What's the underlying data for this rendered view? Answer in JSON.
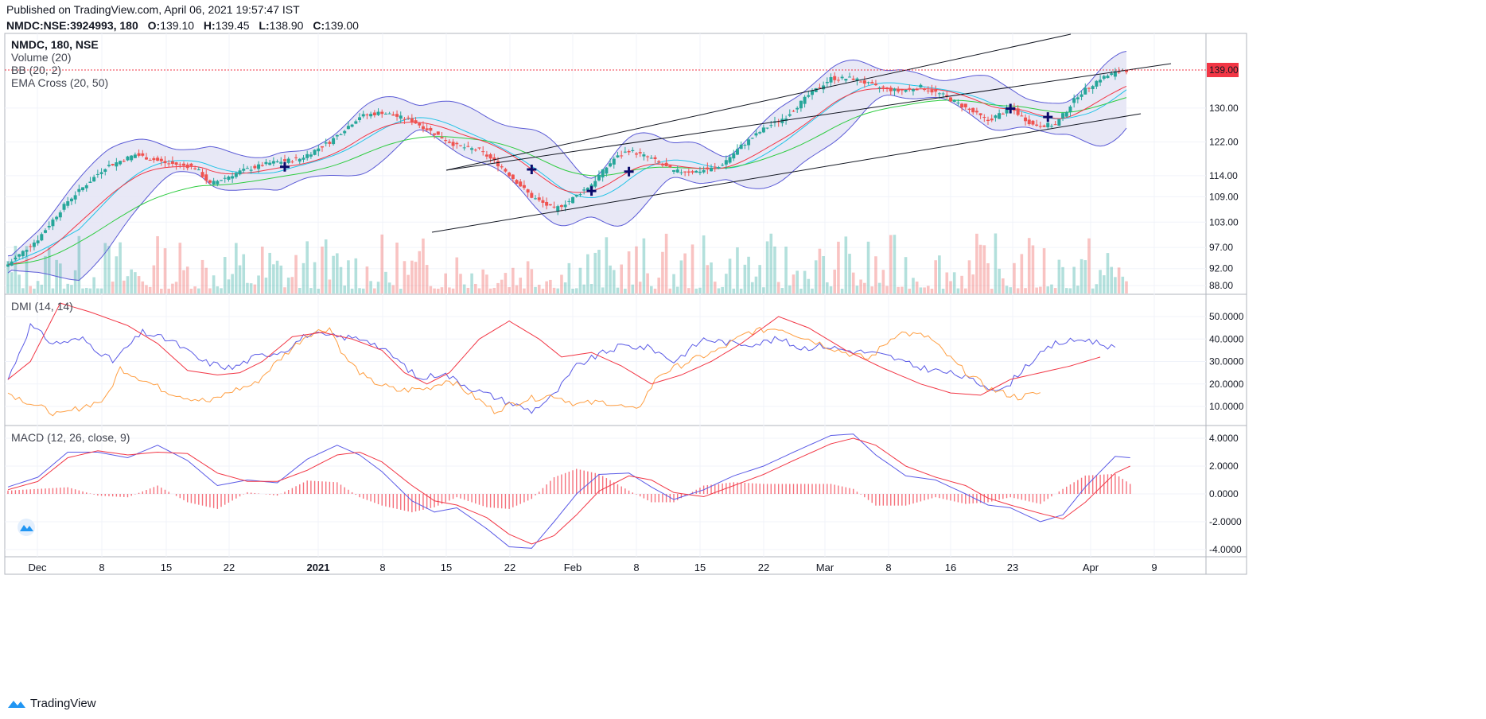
{
  "header": {
    "published": "Published on TradingView.com, April 06, 2021 19:57:47 IST",
    "symbol_line": "NMDC:NSE:3924993, 180",
    "o_label": "O:",
    "o_value": "139.10",
    "h_label": "H:",
    "h_value": "139.45",
    "l_label": "L:",
    "l_value": "138.90",
    "c_label": "C:",
    "c_value": "139.00"
  },
  "brand": {
    "label": "TradingView",
    "icon": "tradingview-logo-icon"
  },
  "colors": {
    "bull": "#26a69a",
    "bear": "#ef5350",
    "bb_band": "#5b5bd6",
    "bb_fill": "#e4e4f5",
    "ema_fast": "#f23645",
    "ema_slow": "#2ecc40",
    "bb_basis": "#22c3e6",
    "dmi_plus": "#5a5ae6",
    "dmi_minus": "#ff9f43",
    "adx": "#f23645",
    "macd": "#5a5ae6",
    "signal": "#f23645",
    "hist": "#f23645",
    "price_line": "#f23645",
    "cross_marker": "#0b0b6b"
  },
  "chart_data": [
    {
      "type": "candlestick",
      "title": "NMDC, 180, NSE",
      "legend": [
        "NMDC, 180, NSE",
        "Volume (20)",
        "BB (20, 2)",
        "EMA Cross (20, 50)"
      ],
      "x_ticks": [
        "Dec",
        "8",
        "15",
        "22",
        "2021",
        "8",
        "15",
        "22",
        "Feb",
        "8",
        "15",
        "22",
        "Mar",
        "8",
        "16",
        "23",
        "Apr",
        "9"
      ],
      "y_ticks": [
        "139.00",
        "130.00",
        "122.00",
        "114.00",
        "109.00",
        "103.00",
        "97.00",
        "92.00",
        "88.00"
      ],
      "last_price": "139.00",
      "close_series_anchors": [
        [
          0,
          93
        ],
        [
          8,
          99
        ],
        [
          16,
          108
        ],
        [
          26,
          116
        ],
        [
          34,
          119
        ],
        [
          42,
          117
        ],
        [
          50,
          116
        ],
        [
          54,
          112
        ],
        [
          62,
          115
        ],
        [
          70,
          117
        ],
        [
          78,
          118
        ],
        [
          86,
          122
        ],
        [
          94,
          128
        ],
        [
          100,
          129
        ],
        [
          108,
          127
        ],
        [
          114,
          124
        ],
        [
          120,
          121
        ],
        [
          126,
          120
        ],
        [
          132,
          116
        ],
        [
          140,
          109
        ],
        [
          146,
          106
        ],
        [
          150,
          108
        ],
        [
          156,
          112
        ],
        [
          162,
          118
        ],
        [
          166,
          120
        ],
        [
          172,
          118
        ],
        [
          178,
          115
        ],
        [
          184,
          115
        ],
        [
          190,
          116
        ],
        [
          196,
          121
        ],
        [
          202,
          125
        ],
        [
          208,
          128
        ],
        [
          214,
          133
        ],
        [
          220,
          137
        ],
        [
          226,
          137
        ],
        [
          232,
          135
        ],
        [
          238,
          134
        ],
        [
          244,
          135
        ],
        [
          250,
          133
        ],
        [
          256,
          130
        ],
        [
          262,
          127
        ],
        [
          268,
          130
        ],
        [
          274,
          126
        ],
        [
          280,
          126
        ],
        [
          286,
          133
        ],
        [
          292,
          137
        ],
        [
          298,
          139
        ]
      ],
      "ema_cross_markers": [
        74,
        140,
        156,
        166,
        268,
        278
      ]
    },
    {
      "type": "line",
      "title": "DMI (14, 14)",
      "y_ticks": [
        "50.0000",
        "40.0000",
        "30.0000",
        "20.0000",
        "10.0000"
      ],
      "series": [
        {
          "name": "+DI",
          "anchors": [
            [
              0,
              22
            ],
            [
              6,
              46
            ],
            [
              12,
              38
            ],
            [
              20,
              40
            ],
            [
              28,
              30
            ],
            [
              36,
              43
            ],
            [
              44,
              39
            ],
            [
              52,
              30
            ],
            [
              60,
              27
            ],
            [
              66,
              32
            ],
            [
              74,
              35
            ],
            [
              80,
              42
            ],
            [
              88,
              41
            ],
            [
              96,
              40
            ],
            [
              104,
              31
            ],
            [
              110,
              22
            ],
            [
              116,
              25
            ],
            [
              124,
              18
            ],
            [
              132,
              13
            ],
            [
              140,
              8
            ],
            [
              146,
              15
            ],
            [
              152,
              28
            ],
            [
              158,
              33
            ],
            [
              164,
              37
            ],
            [
              172,
              36
            ],
            [
              178,
              30
            ],
            [
              186,
              40
            ],
            [
              194,
              38
            ],
            [
              200,
              38
            ],
            [
              206,
              40
            ],
            [
              212,
              36
            ],
            [
              218,
              37
            ],
            [
              224,
              35
            ],
            [
              230,
              34
            ],
            [
              236,
              32
            ],
            [
              242,
              28
            ],
            [
              248,
              26
            ],
            [
              254,
              24
            ],
            [
              260,
              20
            ],
            [
              266,
              17
            ],
            [
              272,
              28
            ],
            [
              280,
              38
            ],
            [
              288,
              40
            ],
            [
              296,
              36
            ]
          ]
        },
        {
          "name": "-DI",
          "anchors": [
            [
              0,
              16
            ],
            [
              8,
              10
            ],
            [
              14,
              6
            ],
            [
              20,
              10
            ],
            [
              26,
              13
            ],
            [
              30,
              27
            ],
            [
              36,
              22
            ],
            [
              42,
              17
            ],
            [
              48,
              14
            ],
            [
              54,
              12
            ],
            [
              60,
              17
            ],
            [
              66,
              20
            ],
            [
              72,
              30
            ],
            [
              80,
              42
            ],
            [
              86,
              45
            ],
            [
              90,
              32
            ],
            [
              96,
              22
            ],
            [
              104,
              17
            ],
            [
              112,
              18
            ],
            [
              118,
              22
            ],
            [
              124,
              15
            ],
            [
              130,
              8
            ],
            [
              138,
              13
            ],
            [
              146,
              15
            ],
            [
              152,
              11
            ],
            [
              160,
              12
            ],
            [
              168,
              8
            ],
            [
              174,
              24
            ],
            [
              182,
              30
            ],
            [
              190,
              35
            ],
            [
              198,
              43
            ],
            [
              206,
              45
            ],
            [
              214,
              40
            ],
            [
              222,
              35
            ],
            [
              230,
              31
            ],
            [
              238,
              43
            ],
            [
              246,
              41
            ],
            [
              254,
              28
            ],
            [
              262,
              18
            ],
            [
              270,
              14
            ],
            [
              276,
              16
            ]
          ]
        },
        {
          "name": "ADX",
          "anchors": [
            [
              0,
              22
            ],
            [
              6,
              30
            ],
            [
              14,
              56
            ],
            [
              22,
              52
            ],
            [
              32,
              46
            ],
            [
              40,
              38
            ],
            [
              48,
              26
            ],
            [
              56,
              24
            ],
            [
              62,
              25
            ],
            [
              68,
              30
            ],
            [
              76,
              41
            ],
            [
              84,
              43
            ],
            [
              92,
              40
            ],
            [
              100,
              35
            ],
            [
              106,
              25
            ],
            [
              112,
              20
            ],
            [
              118,
              25
            ],
            [
              126,
              40
            ],
            [
              134,
              48
            ],
            [
              142,
              40
            ],
            [
              148,
              32
            ],
            [
              156,
              34
            ],
            [
              164,
              28
            ],
            [
              172,
              20
            ],
            [
              180,
              24
            ],
            [
              188,
              30
            ],
            [
              196,
              38
            ],
            [
              206,
              50
            ],
            [
              214,
              45
            ],
            [
              224,
              35
            ],
            [
              234,
              27
            ],
            [
              244,
              20
            ],
            [
              252,
              16
            ],
            [
              260,
              15
            ],
            [
              268,
              22
            ],
            [
              276,
              25
            ],
            [
              284,
              28
            ],
            [
              292,
              32
            ]
          ]
        }
      ]
    },
    {
      "type": "line",
      "title": "MACD (12, 26, close, 9)",
      "y_ticks": [
        "4.0000",
        "2.0000",
        "0.0000",
        "-2.0000",
        "-4.0000"
      ],
      "series": [
        {
          "name": "MACD",
          "anchors": [
            [
              0,
              0.5
            ],
            [
              8,
              1.2
            ],
            [
              16,
              3.0
            ],
            [
              24,
              3.0
            ],
            [
              32,
              2.6
            ],
            [
              40,
              3.5
            ],
            [
              48,
              2.4
            ],
            [
              56,
              0.6
            ],
            [
              64,
              1.0
            ],
            [
              72,
              0.8
            ],
            [
              80,
              2.5
            ],
            [
              88,
              3.5
            ],
            [
              94,
              2.8
            ],
            [
              100,
              1.6
            ],
            [
              108,
              -0.5
            ],
            [
              114,
              -1.3
            ],
            [
              120,
              -1.0
            ],
            [
              128,
              -2.5
            ],
            [
              134,
              -3.8
            ],
            [
              140,
              -3.9
            ],
            [
              146,
              -2.0
            ],
            [
              152,
              0.0
            ],
            [
              158,
              1.4
            ],
            [
              166,
              1.5
            ],
            [
              172,
              0.5
            ],
            [
              178,
              -0.4
            ],
            [
              186,
              0.3
            ],
            [
              194,
              1.3
            ],
            [
              202,
              2.0
            ],
            [
              210,
              3.0
            ],
            [
              220,
              4.2
            ],
            [
              226,
              4.3
            ],
            [
              232,
              2.8
            ],
            [
              240,
              1.3
            ],
            [
              248,
              1.0
            ],
            [
              256,
              0.0
            ],
            [
              262,
              -0.8
            ],
            [
              268,
              -1.0
            ],
            [
              276,
              -2.0
            ],
            [
              282,
              -1.5
            ],
            [
              288,
              0.5
            ],
            [
              296,
              2.7
            ],
            [
              300,
              2.6
            ]
          ]
        },
        {
          "name": "Signal",
          "anchors": [
            [
              0,
              0.3
            ],
            [
              8,
              0.9
            ],
            [
              16,
              2.6
            ],
            [
              24,
              3.1
            ],
            [
              32,
              2.8
            ],
            [
              40,
              3.0
            ],
            [
              48,
              2.9
            ],
            [
              56,
              1.5
            ],
            [
              64,
              0.9
            ],
            [
              72,
              0.9
            ],
            [
              80,
              1.7
            ],
            [
              88,
              2.8
            ],
            [
              94,
              3.0
            ],
            [
              100,
              2.3
            ],
            [
              108,
              0.6
            ],
            [
              114,
              -0.5
            ],
            [
              120,
              -0.8
            ],
            [
              128,
              -1.7
            ],
            [
              134,
              -2.9
            ],
            [
              140,
              -3.6
            ],
            [
              146,
              -3.0
            ],
            [
              152,
              -1.5
            ],
            [
              158,
              0.2
            ],
            [
              166,
              1.3
            ],
            [
              172,
              1.0
            ],
            [
              178,
              0.1
            ],
            [
              186,
              -0.2
            ],
            [
              194,
              0.6
            ],
            [
              202,
              1.4
            ],
            [
              210,
              2.4
            ],
            [
              220,
              3.6
            ],
            [
              226,
              4.0
            ],
            [
              232,
              3.5
            ],
            [
              240,
              2.0
            ],
            [
              248,
              1.2
            ],
            [
              256,
              0.6
            ],
            [
              262,
              -0.3
            ],
            [
              268,
              -0.8
            ],
            [
              276,
              -1.4
            ],
            [
              282,
              -1.8
            ],
            [
              288,
              -0.6
            ],
            [
              296,
              1.5
            ],
            [
              300,
              2.0
            ]
          ]
        }
      ]
    }
  ]
}
